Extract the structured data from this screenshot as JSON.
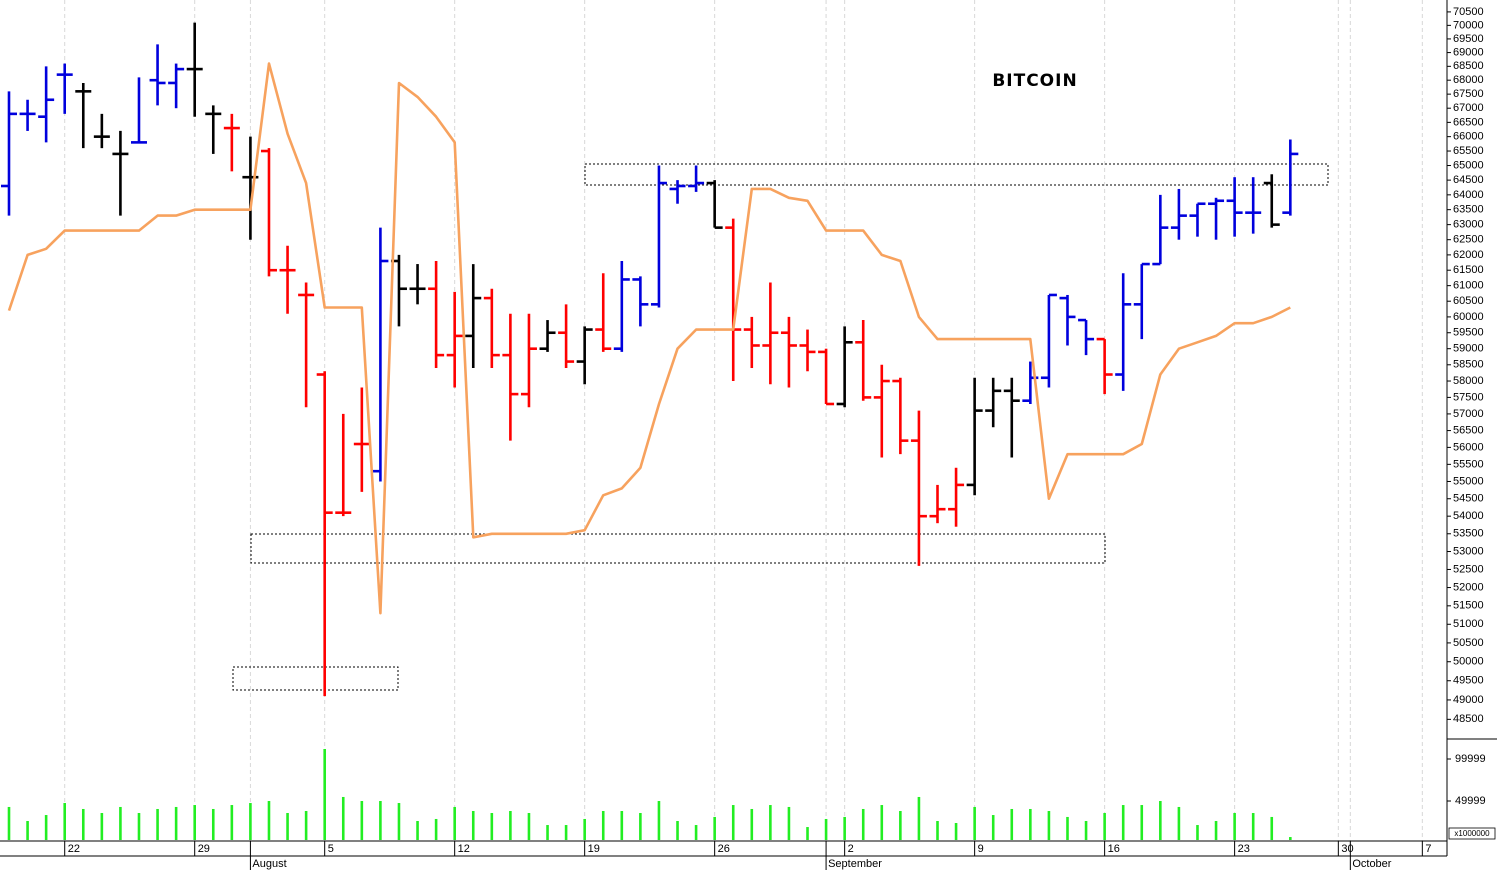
{
  "chart_data": {
    "type": "ohlc",
    "title": "BITCOIN",
    "log_scale": true,
    "categories": [
      null,
      null,
      null,
      "22",
      null,
      null,
      null,
      null,
      null,
      null,
      "29",
      null,
      null,
      "August",
      null,
      null,
      null,
      "5",
      null,
      null,
      null,
      null,
      null,
      null,
      "12",
      null,
      null,
      null,
      null,
      null,
      null,
      "19",
      null,
      null,
      null,
      null,
      null,
      null,
      "26",
      null,
      null,
      null,
      null,
      null,
      "September",
      "2",
      null,
      null,
      null,
      null,
      null,
      null,
      "9",
      null,
      null,
      null,
      null,
      null,
      null,
      "16",
      null,
      null,
      null,
      null,
      null,
      null,
      "23",
      null,
      null,
      null,
      null,
      null,
      null,
      "30",
      "October",
      null,
      null,
      null,
      null,
      null,
      "7",
      null
    ],
    "ylim": [
      48100,
      70870
    ],
    "yticks": [
      48500,
      49000,
      49500,
      50000,
      50500,
      51000,
      51500,
      52000,
      52500,
      53000,
      53500,
      54000,
      54500,
      55000,
      55500,
      56000,
      56500,
      57000,
      57500,
      58000,
      58500,
      59000,
      59500,
      60000,
      60500,
      61000,
      61500,
      62000,
      62500,
      63000,
      63500,
      64000,
      64500,
      65000,
      65500,
      66000,
      66500,
      67000,
      67500,
      68000,
      68500,
      69000,
      69500,
      70000,
      70500
    ],
    "y2lim": [
      0,
      125000
    ],
    "y2ticks": [
      49999,
      99999
    ],
    "y2_unit": "x1000000",
    "series": [
      {
        "type": "ohlc",
        "open": [
          64300,
          66800,
          66700,
          68200,
          67600,
          66000,
          65400,
          65800,
          68000,
          67900,
          68400,
          66800,
          66300,
          64600,
          65500,
          61500,
          60700,
          58200,
          54100,
          56100,
          55300,
          61800,
          60900,
          60900,
          58800,
          59400,
          60600,
          58800,
          57600,
          59000,
          59500,
          58600,
          59600,
          59000,
          61200,
          60400,
          64200,
          64300,
          64400,
          62900,
          59600,
          59100,
          59500,
          59100,
          58900,
          57300,
          59200,
          57500,
          58000,
          56200,
          54000,
          54200,
          54900,
          57100,
          57700,
          57400,
          58100,
          60600,
          59900,
          59300,
          58200,
          60400,
          61700,
          62900,
          63300,
          63700,
          63800,
          63400,
          64400,
          63400,
          null,
          null,
          null,
          null,
          null,
          null,
          null,
          null,
          null,
          null,
          null,
          null
        ],
        "high": [
          67600,
          67300,
          68500,
          68600,
          67900,
          66800,
          66200,
          68100,
          69300,
          68600,
          70100,
          67100,
          66800,
          66000,
          65600,
          62300,
          61100,
          58300,
          57000,
          57800,
          62900,
          62000,
          61700,
          61800,
          60800,
          61700,
          60900,
          60100,
          60100,
          59900,
          60400,
          59700,
          61400,
          61800,
          61300,
          65000,
          64500,
          65000,
          64500,
          63200,
          60000,
          61100,
          60000,
          59600,
          59000,
          59700,
          59900,
          58500,
          58100,
          57100,
          54900,
          55400,
          58100,
          58100,
          58100,
          58600,
          60700,
          60700,
          59900,
          59300,
          61400,
          61700,
          64000,
          64200,
          63700,
          63900,
          64600,
          64600,
          64700,
          65900,
          null,
          null,
          null,
          null,
          null,
          null,
          null,
          null,
          null,
          null,
          null,
          null
        ],
        "low": [
          63300,
          66200,
          65800,
          66800,
          65600,
          65600,
          63300,
          65800,
          67100,
          67000,
          66700,
          65400,
          64800,
          62500,
          61300,
          60100,
          57200,
          49100,
          54000,
          54700,
          55000,
          59700,
          60400,
          58400,
          57800,
          58400,
          58400,
          56200,
          57200,
          58900,
          58400,
          57900,
          58900,
          58900,
          59700,
          60300,
          63700,
          64100,
          62900,
          58000,
          58400,
          57900,
          57800,
          58300,
          57300,
          57200,
          57400,
          55700,
          55800,
          52600,
          53800,
          53700,
          54600,
          56600,
          55700,
          57300,
          57800,
          59100,
          58800,
          57600,
          57700,
          59300,
          61700,
          62500,
          62600,
          62500,
          62600,
          62700,
          62900,
          63300,
          null,
          null,
          null,
          null,
          null,
          null,
          null,
          null,
          null,
          null,
          null,
          null
        ],
        "close": [
          66800,
          66800,
          67300,
          68200,
          67600,
          66000,
          65400,
          65800,
          67900,
          68400,
          68400,
          66800,
          66300,
          64600,
          61500,
          61500,
          60700,
          54100,
          54100,
          56100,
          61800,
          60900,
          60900,
          58800,
          59400,
          60600,
          58800,
          57600,
          59000,
          59500,
          58600,
          59600,
          59000,
          61200,
          60400,
          64400,
          64300,
          64400,
          62900,
          59600,
          59100,
          59500,
          59100,
          58900,
          57300,
          59200,
          57500,
          58000,
          56200,
          54000,
          54200,
          54900,
          57100,
          57700,
          57400,
          58100,
          60700,
          60000,
          59300,
          58200,
          60400,
          61700,
          62900,
          63300,
          63700,
          63800,
          63400,
          63400,
          63000,
          65400,
          null,
          null,
          null,
          null,
          null,
          null,
          null,
          null,
          null,
          null,
          null,
          null
        ],
        "colors": [
          "#0000dd",
          "#0000dd",
          "#0000dd",
          "#0000dd",
          "#000000",
          "#000000",
          "#000000",
          "#0000dd",
          "#0000dd",
          "#0000dd",
          "#000000",
          "#000000",
          "#ff0000",
          "#000000",
          "#ff0000",
          "#ff0000",
          "#ff0000",
          "#ff0000",
          "#ff0000",
          "#ff0000",
          "#0000dd",
          "#000000",
          "#000000",
          "#ff0000",
          "#ff0000",
          "#000000",
          "#ff0000",
          "#ff0000",
          "#ff0000",
          "#000000",
          "#ff0000",
          "#000000",
          "#ff0000",
          "#0000dd",
          "#0000dd",
          "#0000dd",
          "#0000dd",
          "#0000dd",
          "#000000",
          "#ff0000",
          "#ff0000",
          "#ff0000",
          "#ff0000",
          "#ff0000",
          "#ff0000",
          "#000000",
          "#ff0000",
          "#ff0000",
          "#ff0000",
          "#ff0000",
          "#ff0000",
          "#ff0000",
          "#000000",
          "#000000",
          "#000000",
          "#0000dd",
          "#0000dd",
          "#0000dd",
          "#0000dd",
          "#ff0000",
          "#0000dd",
          "#0000dd",
          "#0000dd",
          "#0000dd",
          "#0000dd",
          "#0000dd",
          "#0000dd",
          "#0000dd",
          "#000000",
          "#0000dd",
          null,
          null,
          null,
          null,
          null,
          null,
          null,
          null,
          null,
          null,
          null,
          null
        ]
      },
      {
        "type": "line",
        "color": "#f7a25e",
        "values": [
          60200,
          62000,
          62200,
          62800,
          62800,
          62800,
          62800,
          62800,
          63300,
          63300,
          63500,
          63500,
          63500,
          63500,
          68600,
          66100,
          64400,
          60300,
          60300,
          60300,
          51300,
          67900,
          67400,
          66700,
          65800,
          53400,
          53500,
          53500,
          53500,
          53500,
          53500,
          53600,
          54600,
          54800,
          55400,
          57300,
          59000,
          59600,
          59600,
          59600,
          64200,
          64200,
          63900,
          63800,
          62800,
          62800,
          62800,
          62000,
          61800,
          60000,
          59300,
          59300,
          59300,
          59300,
          59300,
          59300,
          54500,
          55800,
          55800,
          55800,
          55800,
          56100,
          58200,
          59000,
          59200,
          59400,
          59800,
          59800,
          60000,
          60300,
          null,
          null,
          null,
          null,
          null,
          null,
          null,
          null,
          null,
          null,
          null,
          null
        ]
      },
      {
        "type": "volume",
        "axis": "y2",
        "color": "#22ee22",
        "values": [
          42900,
          26200,
          33300,
          47600,
          40500,
          35700,
          42900,
          35700,
          40500,
          42900,
          45200,
          40500,
          45200,
          47600,
          50000,
          35700,
          38100,
          111900,
          54800,
          50000,
          50000,
          47600,
          26200,
          28600,
          42900,
          38100,
          35700,
          38100,
          35700,
          21400,
          21400,
          28600,
          38100,
          38100,
          35700,
          50000,
          26200,
          21400,
          31000,
          45200,
          40500,
          45200,
          42900,
          19000,
          28600,
          31000,
          40500,
          45200,
          38100,
          54800,
          26200,
          23800,
          42900,
          33300,
          40500,
          40500,
          38100,
          31000,
          26200,
          35700,
          45200,
          45200,
          50000,
          42900,
          21400,
          26200,
          35700,
          35700,
          31000,
          7100,
          null,
          null,
          null,
          null,
          null,
          null,
          null,
          null,
          null,
          null,
          null,
          null
        ]
      }
    ]
  }
}
